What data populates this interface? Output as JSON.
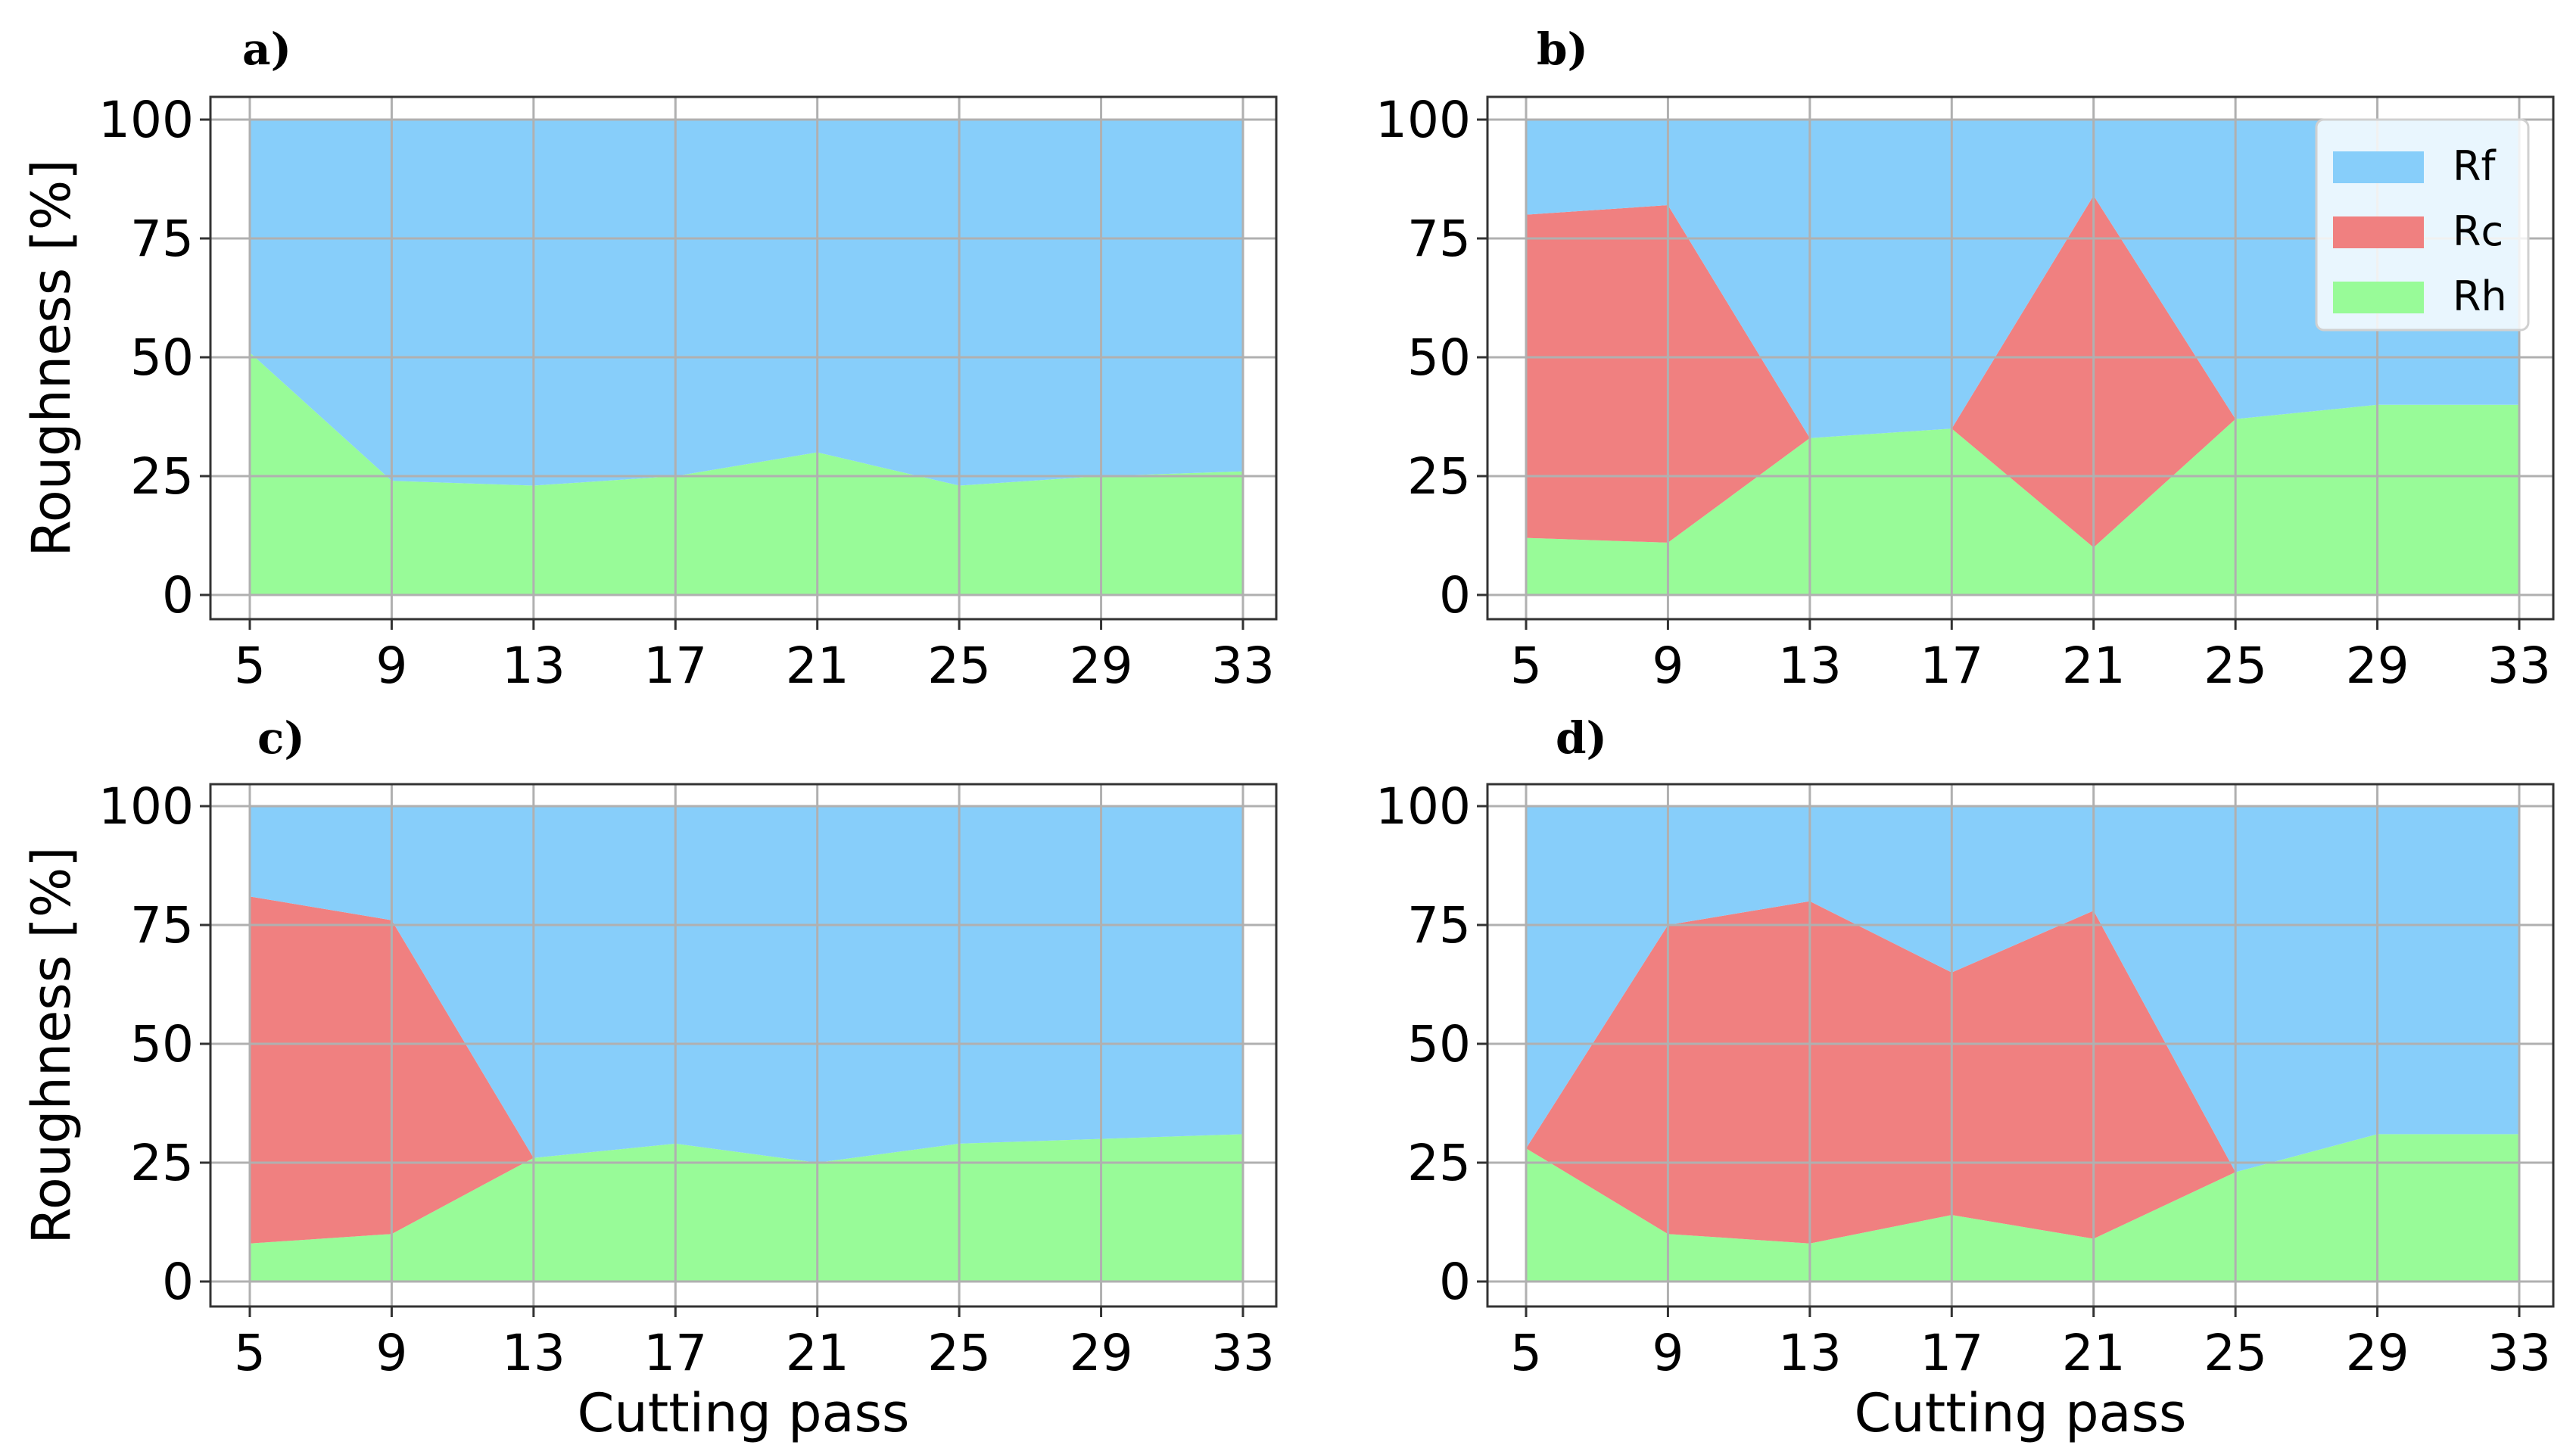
{
  "chart_data": [
    {
      "type": "area",
      "panel_label": "a)",
      "x": [
        5,
        9,
        13,
        17,
        21,
        25,
        29,
        33
      ],
      "xticks": [
        "5",
        "9",
        "13",
        "17",
        "21",
        "25",
        "29",
        "33"
      ],
      "yticks": [
        "0",
        "25",
        "50",
        "75",
        "100"
      ],
      "ylim": [
        0,
        100
      ],
      "ylabel": "Roughness [%]",
      "xlabel": "",
      "grid": true,
      "stacked": true,
      "series": [
        {
          "name": "Rh",
          "values": [
            51,
            24,
            23,
            25,
            30,
            23,
            25,
            26
          ]
        },
        {
          "name": "Rc",
          "values": [
            0,
            0,
            0,
            0,
            0,
            0,
            0,
            0
          ]
        },
        {
          "name": "Rf",
          "values": [
            49,
            76,
            77,
            75,
            70,
            77,
            75,
            74
          ]
        }
      ]
    },
    {
      "type": "area",
      "panel_label": "b)",
      "x": [
        5,
        9,
        13,
        17,
        21,
        25,
        29,
        33
      ],
      "xticks": [
        "5",
        "9",
        "13",
        "17",
        "21",
        "25",
        "29",
        "33"
      ],
      "yticks": [
        "0",
        "25",
        "50",
        "75",
        "100"
      ],
      "ylim": [
        0,
        100
      ],
      "ylabel": "",
      "xlabel": "",
      "grid": true,
      "stacked": true,
      "legend": "top-right",
      "series": [
        {
          "name": "Rh",
          "values": [
            12,
            11,
            33,
            35,
            10,
            37,
            40,
            40
          ]
        },
        {
          "name": "Rc",
          "values": [
            68,
            71,
            0,
            0,
            74,
            0,
            0,
            0
          ]
        },
        {
          "name": "Rf",
          "values": [
            20,
            18,
            67,
            65,
            16,
            63,
            60,
            60
          ]
        }
      ]
    },
    {
      "type": "area",
      "panel_label": "c)",
      "x": [
        5,
        9,
        13,
        17,
        21,
        25,
        29,
        33
      ],
      "xticks": [
        "5",
        "9",
        "13",
        "17",
        "21",
        "25",
        "29",
        "33"
      ],
      "yticks": [
        "0",
        "25",
        "50",
        "75",
        "100"
      ],
      "ylim": [
        0,
        100
      ],
      "ylabel": "Roughness [%]",
      "xlabel": "Cutting pass",
      "grid": true,
      "stacked": true,
      "series": [
        {
          "name": "Rh",
          "values": [
            8,
            10,
            26,
            29,
            25,
            29,
            30,
            31
          ]
        },
        {
          "name": "Rc",
          "values": [
            73,
            66,
            0,
            0,
            0,
            0,
            0,
            0
          ]
        },
        {
          "name": "Rf",
          "values": [
            19,
            24,
            74,
            71,
            75,
            71,
            70,
            69
          ]
        }
      ]
    },
    {
      "type": "area",
      "panel_label": "d)",
      "x": [
        5,
        9,
        13,
        17,
        21,
        25,
        29,
        33
      ],
      "xticks": [
        "5",
        "9",
        "13",
        "17",
        "21",
        "25",
        "29",
        "33"
      ],
      "yticks": [
        "0",
        "25",
        "50",
        "75",
        "100"
      ],
      "ylim": [
        0,
        100
      ],
      "ylabel": "",
      "xlabel": "Cutting pass",
      "grid": true,
      "stacked": true,
      "series": [
        {
          "name": "Rh",
          "values": [
            28,
            10,
            8,
            14,
            9,
            23,
            31,
            31
          ]
        },
        {
          "name": "Rc",
          "values": [
            0,
            65,
            72,
            51,
            69,
            0,
            0,
            0
          ]
        },
        {
          "name": "Rf",
          "values": [
            72,
            25,
            20,
            35,
            22,
            77,
            69,
            69
          ]
        }
      ]
    }
  ],
  "legend": {
    "entries": [
      "Rf",
      "Rc",
      "Rh"
    ]
  },
  "colors": {
    "Rf": "#87cefa",
    "Rc": "#f08080",
    "Rh": "#98fb98"
  }
}
